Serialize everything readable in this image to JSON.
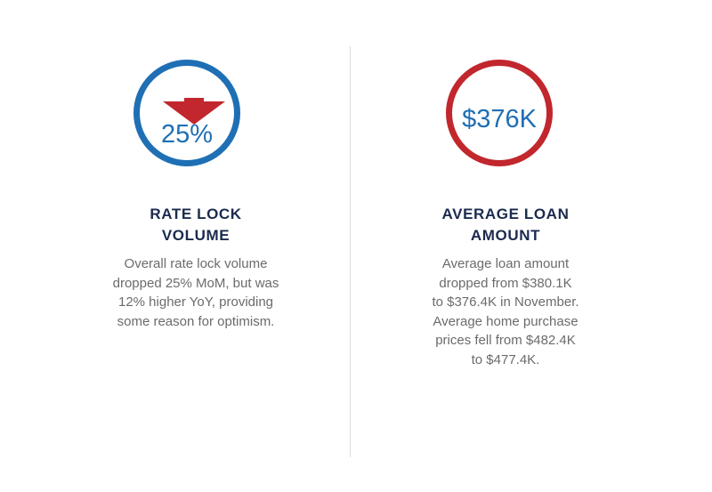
{
  "colors": {
    "blue": "#1f6fb4",
    "red": "#c1272d",
    "navy": "#1b2a4e",
    "text_gray": "#6b6b6b"
  },
  "left": {
    "icon": "down-arrow-icon",
    "value": "25%",
    "title_lines": [
      "RATE LOCK",
      "VOLUME"
    ],
    "description_lines": [
      "Overall rate lock volume",
      "dropped 25% MoM, but was",
      "12% higher YoY, providing",
      "some reason for optimism."
    ]
  },
  "right": {
    "value": "$376K",
    "title_lines": [
      "AVERAGE LOAN",
      "AMOUNT"
    ],
    "description_lines": [
      "Average loan amount",
      "dropped from $380.1K",
      "to $376.4K in November.",
      "Average home purchase",
      "prices fell from $482.4K",
      "to $477.4K."
    ]
  }
}
